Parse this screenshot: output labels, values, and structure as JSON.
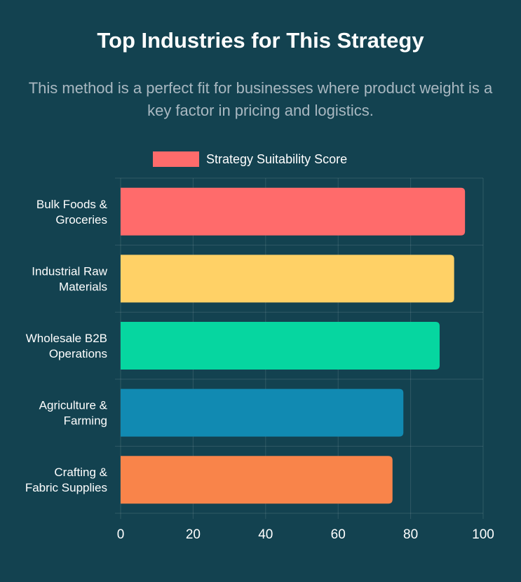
{
  "header": {
    "title": "Top Industries for This Strategy",
    "subtitle": "This method is a perfect fit for businesses where product weight is a key factor in pricing and logistics."
  },
  "chart_data": {
    "type": "bar",
    "orientation": "horizontal",
    "legend": {
      "label": "Strategy Suitability Score",
      "color": "#ff6b6b",
      "placement": "top-center"
    },
    "categories": [
      [
        "Bulk Foods &",
        "Groceries"
      ],
      [
        "Industrial Raw",
        "Materials"
      ],
      [
        "Wholesale B2B",
        "Operations"
      ],
      [
        "Agriculture &",
        "Farming"
      ],
      [
        "Crafting &",
        "Fabric Supplies"
      ]
    ],
    "values": [
      95,
      92,
      88,
      78,
      75
    ],
    "colors": [
      "#ff6b6b",
      "#ffd166",
      "#06d6a0",
      "#118ab2",
      "#f9844a"
    ],
    "xlim": [
      0,
      100
    ],
    "xticks": [
      0,
      20,
      40,
      60,
      80,
      100
    ],
    "grid": true
  }
}
